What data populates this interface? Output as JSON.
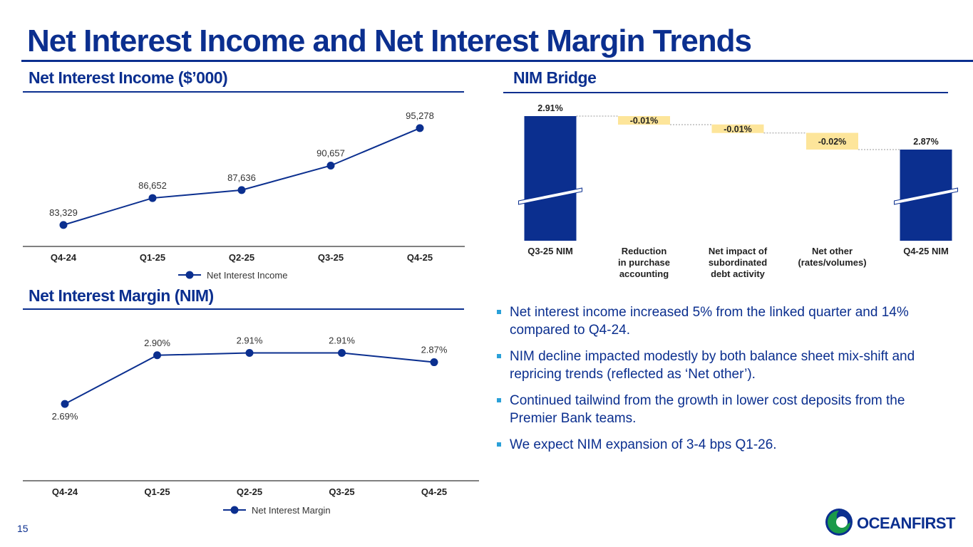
{
  "page": {
    "title": "Net Interest Income and Net Interest Margin Trends",
    "page_number": "15"
  },
  "sections": {
    "nii": "Net Interest Income ($’000)",
    "nim": "Net Interest Margin (NIM)",
    "bridge": "NIM Bridge"
  },
  "bullets": [
    "Net interest income increased 5% from the linked quarter and 14% compared to Q4-24.",
    "NIM decline impacted modestly by both balance sheet mix-shift and repricing trends (reflected as ‘Net other’).",
    "Continued tailwind from the growth in lower cost deposits from the Premier Bank teams.",
    "We expect NIM expansion of 3-4 bps Q1-26."
  ],
  "logo": {
    "text": "OCEANFIRST",
    "icon": "oceanfirst-wave-logo-icon"
  },
  "colors": {
    "navy": "#0b2f8f",
    "accent": "#2aa0d8",
    "negative": "#fde59a",
    "logo_green": "#1a9a4a"
  },
  "chart_data": [
    {
      "id": "nii",
      "type": "line",
      "title": "Net Interest Income ($’000)",
      "categories": [
        "Q4-24",
        "Q1-25",
        "Q2-25",
        "Q3-25",
        "Q4-25"
      ],
      "series": [
        {
          "name": "Net Interest Income",
          "values": [
            83329,
            86652,
            87636,
            90657,
            95278
          ]
        }
      ],
      "labels": [
        "83,329",
        "86,652",
        "87,636",
        "90,657",
        "95,278"
      ],
      "ylim": [
        82000,
        96500
      ],
      "legend": "bottom"
    },
    {
      "id": "nim",
      "type": "line",
      "title": "Net Interest Margin (NIM)",
      "categories": [
        "Q4-24",
        "Q1-25",
        "Q2-25",
        "Q3-25",
        "Q4-25"
      ],
      "series": [
        {
          "name": "Net Interest Margin",
          "values": [
            2.69,
            2.9,
            2.91,
            2.91,
            2.87
          ]
        }
      ],
      "labels": [
        "2.69%",
        "2.90%",
        "2.91%",
        "2.91%",
        "2.87%"
      ],
      "ylim": [
        2.5,
        2.97
      ],
      "legend": "bottom"
    },
    {
      "id": "bridge",
      "type": "bar",
      "subtype": "waterfall",
      "title": "NIM Bridge",
      "categories": [
        "Q3-25 NIM",
        "Reduction in purchase accounting",
        "Net impact of subordinated debt activity",
        "Net other (rates/volumes)",
        "Q4-25 NIM"
      ],
      "category_lines": [
        [
          "Q3-25 NIM"
        ],
        [
          "Reduction",
          "in purchase",
          "accounting"
        ],
        [
          "Net impact of",
          "subordinated",
          "debt activity"
        ],
        [
          "Net other",
          "(rates/volumes)"
        ],
        [
          "Q4-25 NIM"
        ]
      ],
      "values": [
        2.91,
        -0.01,
        -0.01,
        -0.02,
        2.87
      ],
      "labels": [
        "2.91%",
        "-0.01%",
        "-0.01%",
        "-0.02%",
        "2.87%"
      ],
      "kinds": [
        "total",
        "delta",
        "delta",
        "delta",
        "total"
      ],
      "axis_break": true,
      "ylim": [
        2.8,
        2.92
      ]
    }
  ]
}
